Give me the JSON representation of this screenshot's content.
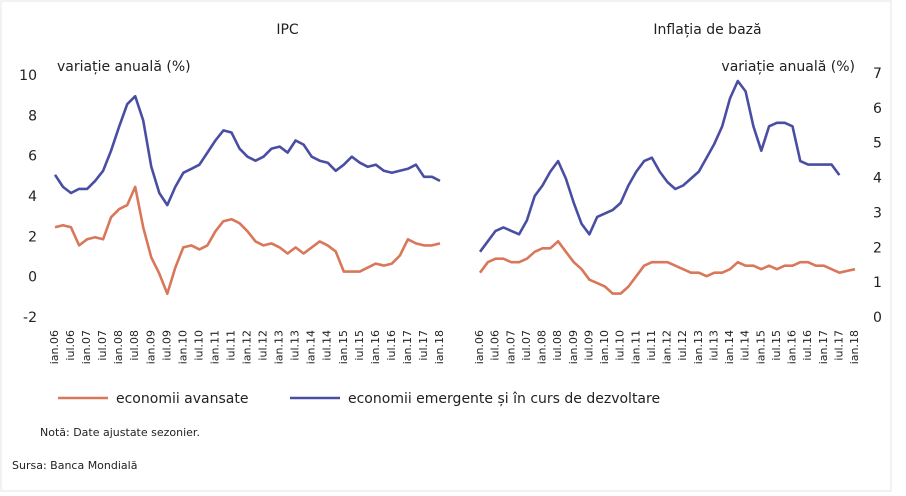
{
  "chart_data": [
    {
      "type": "line",
      "title": "IPC",
      "y_label": "variație anuală (%)",
      "y_axis_side": "left",
      "categories": [
        "ian.06",
        null,
        "iul.06",
        null,
        "ian.07",
        null,
        "iul.07",
        null,
        "ian.08",
        null,
        "iul.08",
        null,
        "ian.09",
        null,
        "iul.09",
        null,
        "ian.10",
        null,
        "iul.10",
        null,
        "ian.11",
        null,
        "iul.11",
        null,
        "ian.12",
        null,
        "iul.12",
        null,
        "ian.13",
        null,
        "iul.13",
        null,
        "ian.14",
        null,
        "iul.14",
        null,
        "ian.15",
        null,
        "iul.15",
        null,
        "ian.16",
        null,
        "iul.16",
        null,
        "ian.17",
        null,
        "iul.17",
        null,
        "ian.18"
      ],
      "ylim": [
        -2,
        10
      ],
      "yticks": [
        -2,
        0,
        2,
        4,
        6,
        8,
        10
      ],
      "series": [
        {
          "name": "economii avansate",
          "color": "#d9775a",
          "values": [
            2.5,
            2.6,
            2.5,
            1.6,
            1.9,
            2.0,
            1.9,
            3.0,
            3.4,
            3.6,
            4.5,
            2.5,
            1.0,
            0.2,
            -0.8,
            0.5,
            1.5,
            1.6,
            1.4,
            1.6,
            2.3,
            2.8,
            2.9,
            2.7,
            2.3,
            1.8,
            1.6,
            1.7,
            1.5,
            1.2,
            1.5,
            1.2,
            1.5,
            1.8,
            1.6,
            1.3,
            0.3,
            0.3,
            0.3,
            0.5,
            0.7,
            0.6,
            0.7,
            1.1,
            1.9,
            1.7,
            1.6,
            1.6,
            1.7
          ]
        },
        {
          "name": "economii emergente și în curs de dezvoltare",
          "color": "#4a4ea3",
          "values": [
            5.1,
            4.5,
            4.2,
            4.4,
            4.4,
            4.8,
            5.3,
            6.3,
            7.5,
            8.6,
            9.0,
            7.8,
            5.5,
            4.2,
            3.6,
            4.5,
            5.2,
            5.4,
            5.6,
            6.2,
            6.8,
            7.3,
            7.2,
            6.4,
            6.0,
            5.8,
            6.0,
            6.4,
            6.5,
            6.2,
            6.8,
            6.6,
            6.0,
            5.8,
            5.7,
            5.3,
            5.6,
            6.0,
            5.7,
            5.5,
            5.6,
            5.3,
            5.2,
            5.3,
            5.4,
            5.6,
            5.0,
            5.0,
            4.8
          ]
        }
      ]
    },
    {
      "type": "line",
      "title": "Inflația de bază",
      "y_label": "variație anuală (%)",
      "y_axis_side": "right",
      "categories": [
        "ian.06",
        null,
        "iul.06",
        null,
        "ian.07",
        null,
        "iul.07",
        null,
        "ian.08",
        null,
        "iul.08",
        null,
        "ian.09",
        null,
        "iul.09",
        null,
        "ian.10",
        null,
        "iul.10",
        null,
        "ian.11",
        null,
        "iul.11",
        null,
        "ian.12",
        null,
        "iul.12",
        null,
        "ian.13",
        null,
        "iul.13",
        null,
        "ian.14",
        null,
        "iul.14",
        null,
        "ian.15",
        null,
        "iul.15",
        null,
        "ian.16",
        null,
        "iul.16",
        null,
        "ian.17",
        null,
        "iul.17",
        null,
        "ian.18"
      ],
      "ylim": [
        0,
        7
      ],
      "yticks": [
        0,
        1,
        2,
        3,
        4,
        5,
        6,
        7
      ],
      "series": [
        {
          "color": "#d9775a",
          "values": [
            1.3,
            1.6,
            1.7,
            1.7,
            1.6,
            1.6,
            1.7,
            1.9,
            2.0,
            2.0,
            2.2,
            1.9,
            1.6,
            1.4,
            1.1,
            1.0,
            0.9,
            0.7,
            0.7,
            0.9,
            1.2,
            1.5,
            1.6,
            1.6,
            1.6,
            1.5,
            1.4,
            1.3,
            1.3,
            1.2,
            1.3,
            1.3,
            1.4,
            1.6,
            1.5,
            1.5,
            1.4,
            1.5,
            1.4,
            1.5,
            1.5,
            1.6,
            1.6,
            1.5,
            1.5,
            1.4,
            1.3,
            1.35,
            1.4
          ]
        },
        {
          "color": "#4a4ea3",
          "values": [
            1.9,
            2.2,
            2.5,
            2.6,
            2.5,
            2.4,
            2.8,
            3.5,
            3.8,
            4.2,
            4.5,
            4.0,
            3.3,
            2.7,
            2.4,
            2.9,
            3.0,
            3.1,
            3.3,
            3.8,
            4.2,
            4.5,
            4.6,
            4.2,
            3.9,
            3.7,
            3.8,
            4.0,
            4.2,
            4.6,
            5.0,
            5.5,
            6.3,
            6.8,
            6.5,
            5.5,
            4.8,
            5.5,
            5.6,
            5.6,
            5.5,
            4.5,
            4.4,
            4.4,
            4.4,
            4.4,
            4.1,
            null,
            null
          ]
        }
      ]
    }
  ],
  "note": "Notă: Date ajustate sezonier.",
  "source": "Sursa: Banca Mondială"
}
